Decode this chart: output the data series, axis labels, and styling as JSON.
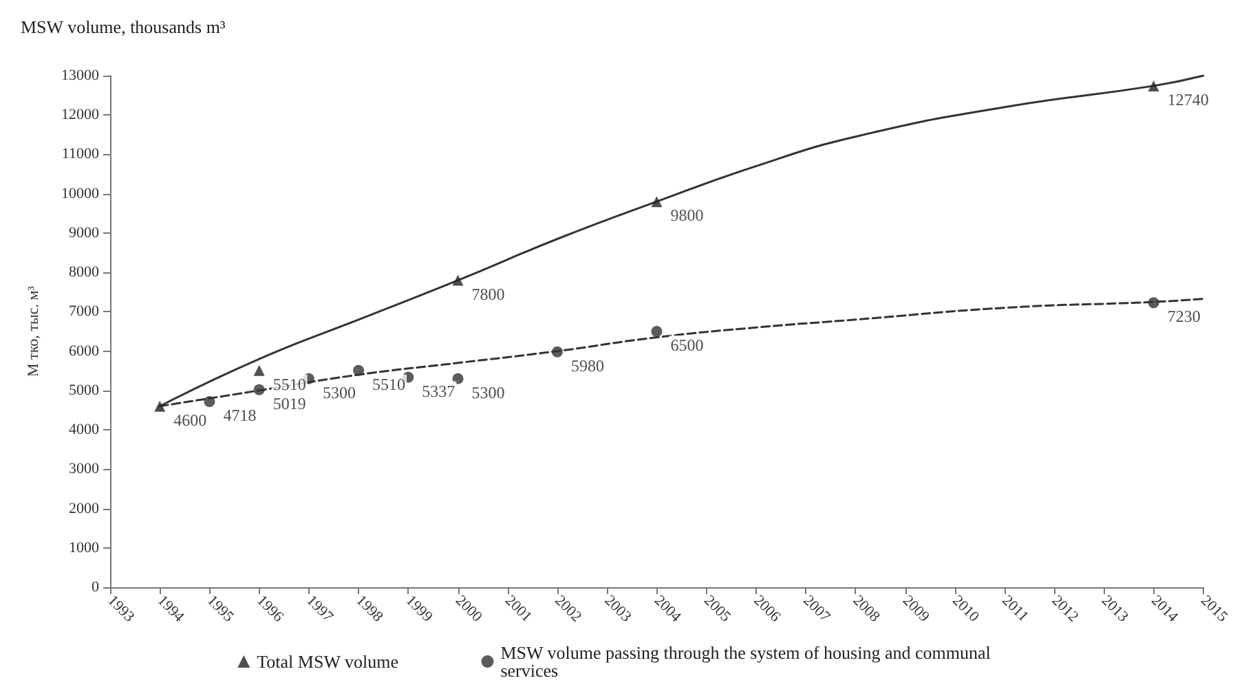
{
  "chart_data": {
    "type": "scatter",
    "title": "MSW volume, thousands m³",
    "ylabel": "М тко, тыс. м³",
    "xlim": [
      1993,
      2015
    ],
    "xticks": [
      1993,
      1994,
      1995,
      1996,
      1997,
      1998,
      1999,
      2000,
      2001,
      2002,
      2003,
      2004,
      2005,
      2006,
      2007,
      2008,
      2009,
      2010,
      2011,
      2012,
      2013,
      2014,
      2015
    ],
    "ylim": [
      0,
      13000
    ],
    "yticks": [
      0,
      1000,
      2000,
      3000,
      4000,
      5000,
      6000,
      7000,
      8000,
      9000,
      10000,
      11000,
      12000,
      13000
    ],
    "series": [
      {
        "name": "Total MSW volume",
        "marker": "triangle",
        "color": "#222222",
        "x": [
          1994,
          1996,
          2000,
          2004,
          2014
        ],
        "values": [
          4600,
          5510,
          7800,
          9800,
          12740
        ],
        "value_labels": [
          "4600",
          "5510",
          "7800",
          "9800",
          "12740"
        ]
      },
      {
        "name": "MSW volume passing through the system of housing and communal services",
        "marker": "circle",
        "color": "#333333",
        "x": [
          1995,
          1996,
          1997,
          1998,
          1999,
          2000,
          2002,
          2004,
          2014
        ],
        "values": [
          4718,
          5019,
          5300,
          5510,
          5337,
          5300,
          5980,
          6500,
          7230
        ],
        "value_labels": [
          "4718",
          "5019",
          "5300",
          "5510",
          "5337",
          "5300",
          "5980",
          "6500",
          "7230"
        ]
      },
      {
        "type": "line",
        "marker": "none",
        "line_style": "solid",
        "color": "#333333",
        "x": [
          1994,
          1996,
          1998,
          2000,
          2002,
          2004,
          2006,
          2008,
          2011,
          2014,
          2015
        ],
        "values": [
          4600,
          5800,
          6800,
          7800,
          8850,
          9800,
          10700,
          11450,
          12200,
          12740,
          13000
        ]
      },
      {
        "type": "line",
        "marker": "none",
        "line_style": "dashed",
        "color": "#333333",
        "x": [
          1994,
          1996,
          1998,
          2000,
          2002,
          2004,
          2006,
          2008,
          2011,
          2014,
          2015
        ],
        "values": [
          4600,
          5000,
          5400,
          5700,
          6000,
          6350,
          6600,
          6800,
          7100,
          7250,
          7330
        ]
      }
    ],
    "legend": "bottom",
    "grid": false
  }
}
